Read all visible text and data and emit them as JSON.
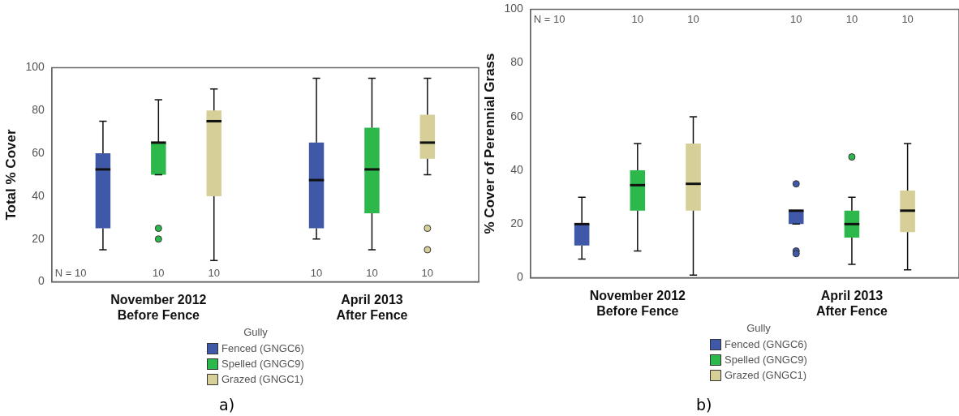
{
  "chart_data": [
    {
      "type": "box",
      "ylabel": "Total % Cover",
      "legend_title": "Gully",
      "legend": "bottom",
      "grid": false,
      "ylim": [
        0,
        100
      ],
      "yticks": [
        0,
        20,
        40,
        60,
        80,
        100
      ],
      "categories": [
        "November 2012\nBefore Fence",
        "April 2013\nAfter Fence"
      ],
      "series": [
        {
          "name": "Fenced (GNGC6)",
          "color": "#3f58a8",
          "boxes": [
            {
              "low": 15,
              "q1": 25,
              "median": 52.5,
              "q3": 60,
              "high": 75
            },
            {
              "low": 20,
              "q1": 25,
              "median": 47.5,
              "q3": 65,
              "high": 95
            }
          ]
        },
        {
          "name": "Spelled (GNGC9)",
          "color": "#2db84b",
          "boxes": [
            {
              "low": 50,
              "q1": 50,
              "median": 65,
              "q3": 65,
              "high": 85,
              "outliers": [
                25,
                20
              ]
            },
            {
              "low": 15,
              "q1": 32,
              "median": 52.5,
              "q3": 72,
              "high": 95
            }
          ]
        },
        {
          "name": "Grazed (GNGC1)",
          "color": "#d6cf98",
          "boxes": [
            {
              "low": 10,
              "q1": 40,
              "median": 75,
              "q3": 80,
              "high": 90
            },
            {
              "low": 50,
              "q1": 57.5,
              "median": 65,
              "q3": 78,
              "high": 95,
              "outliers": [
                25,
                15
              ]
            }
          ]
        }
      ],
      "annotations": [
        "N = 10",
        "10",
        "10",
        "10",
        "10",
        "10",
        "a)"
      ]
    },
    {
      "type": "box",
      "ylabel": "% Cover of Perennial Grass",
      "legend_title": "Gully",
      "legend": "bottom",
      "grid": false,
      "ylim": [
        0,
        100
      ],
      "yticks": [
        0,
        20,
        40,
        60,
        80,
        100
      ],
      "categories": [
        "November 2012\nBefore Fence",
        "April 2013\nAfter Fence"
      ],
      "series": [
        {
          "name": "Fenced (GNGC6)",
          "color": "#3f58a8",
          "boxes": [
            {
              "low": 7,
              "q1": 12,
              "median": 20,
              "q3": 20,
              "high": 30
            },
            {
              "low": 20,
              "q1": 20,
              "median": 25,
              "q3": 25,
              "high": 25,
              "outliers": [
                35,
                10,
                9
              ]
            }
          ]
        },
        {
          "name": "Spelled (GNGC9)",
          "color": "#2db84b",
          "boxes": [
            {
              "low": 10,
              "q1": 25,
              "median": 34.5,
              "q3": 40,
              "high": 50
            },
            {
              "low": 5,
              "q1": 15,
              "median": 20,
              "q3": 25,
              "high": 30,
              "outliers": [
                45
              ]
            }
          ]
        },
        {
          "name": "Grazed (GNGC1)",
          "color": "#d6cf98",
          "boxes": [
            {
              "low": 1,
              "q1": 25,
              "median": 35,
              "q3": 50,
              "high": 60
            },
            {
              "low": 3,
              "q1": 17,
              "median": 25,
              "q3": 32.5,
              "high": 50
            }
          ]
        }
      ],
      "annotations": [
        "N = 10",
        "10",
        "10",
        "10",
        "10",
        "10",
        "b)"
      ]
    }
  ]
}
